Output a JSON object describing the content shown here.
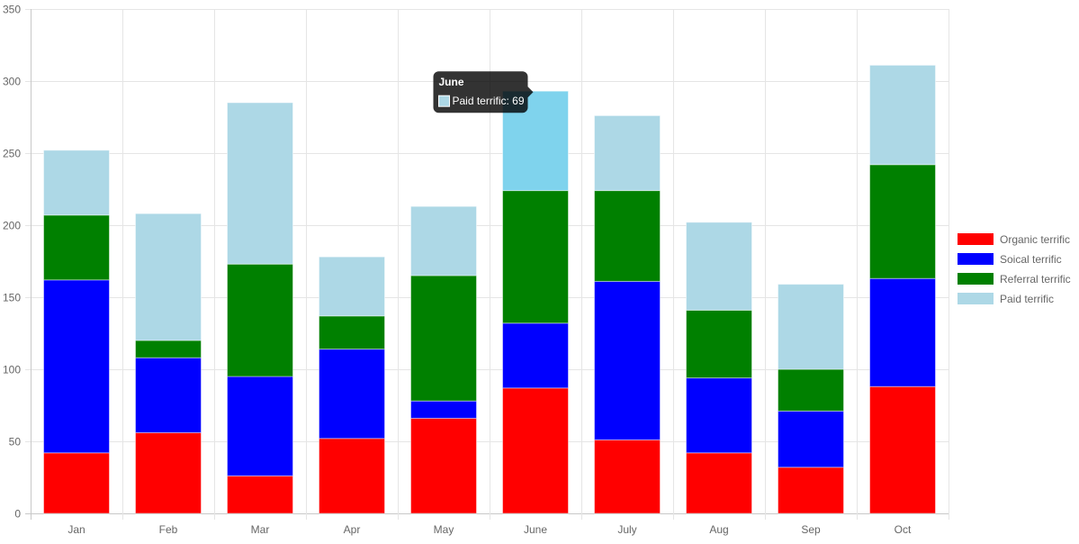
{
  "chart_data": {
    "type": "bar",
    "stacked": true,
    "categories": [
      "Jan",
      "Feb",
      "Mar",
      "Apr",
      "May",
      "June",
      "July",
      "Aug",
      "Sep",
      "Oct"
    ],
    "series": [
      {
        "name": "Organic terrific",
        "color": "#ff0000",
        "values": [
          42,
          56,
          26,
          52,
          66,
          87,
          51,
          42,
          32,
          88
        ]
      },
      {
        "name": "Soical terrific",
        "color": "#0000ff",
        "values": [
          120,
          52,
          69,
          62,
          12,
          45,
          110,
          52,
          39,
          75
        ]
      },
      {
        "name": "Referral terrific",
        "color": "#008000",
        "values": [
          45,
          12,
          78,
          23,
          87,
          92,
          63,
          47,
          29,
          79
        ]
      },
      {
        "name": "Paid terrific",
        "color": "#add8e6",
        "values": [
          45,
          88,
          112,
          41,
          48,
          69,
          52,
          61,
          59,
          69
        ]
      }
    ],
    "ylim": [
      0,
      350
    ],
    "yticks": [
      0,
      50,
      100,
      150,
      200,
      250,
      300,
      350
    ],
    "grid": true,
    "legend_position": "right",
    "tooltip": {
      "title": "June",
      "category": "June",
      "series": "Paid terrific",
      "label": "Paid terrific: 69",
      "highlight_color": "#7fd3ed"
    }
  }
}
